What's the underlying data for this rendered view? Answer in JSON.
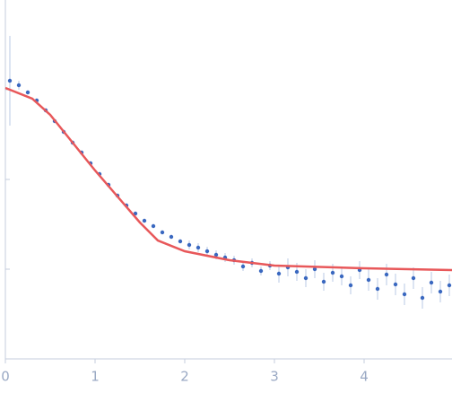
{
  "chart_data": {
    "type": "scatter",
    "xlim": [
      0,
      4.98
    ],
    "ylim": [
      0,
      4
    ],
    "xticks": [
      0,
      1,
      2,
      3,
      4
    ],
    "yticks": [
      1,
      2,
      3
    ],
    "series": [
      {
        "color": "#3a68c0",
        "x": [
          0.05,
          0.15,
          0.25,
          0.35,
          0.45,
          0.55,
          0.65,
          0.75,
          0.85,
          0.95,
          1.05,
          1.15,
          1.25,
          1.35,
          1.45,
          1.55,
          1.65,
          1.75,
          1.85,
          1.95,
          2.05,
          2.15,
          2.25,
          2.35,
          2.45,
          2.55,
          2.65,
          2.75,
          2.85,
          2.95,
          3.05,
          3.15,
          3.25,
          3.35,
          3.45,
          3.55,
          3.65,
          3.75,
          3.85,
          3.95,
          4.05,
          4.15,
          4.25,
          4.35,
          4.45,
          4.55,
          4.65,
          4.75,
          4.85,
          4.95
        ],
        "values": [
          3.1,
          3.05,
          2.97,
          2.88,
          2.77,
          2.65,
          2.53,
          2.41,
          2.3,
          2.18,
          2.06,
          1.94,
          1.82,
          1.71,
          1.62,
          1.54,
          1.48,
          1.41,
          1.36,
          1.31,
          1.27,
          1.24,
          1.2,
          1.16,
          1.13,
          1.1,
          1.03,
          1.07,
          0.98,
          1.04,
          0.95,
          1.02,
          0.97,
          0.9,
          1.0,
          0.86,
          0.96,
          0.92,
          0.82,
          0.99,
          0.88,
          0.78,
          0.94,
          0.83,
          0.72,
          0.9,
          0.68,
          0.85,
          0.75,
          0.82
        ],
        "errors": [
          0.5,
          0.05,
          0.02,
          0.02,
          0.02,
          0.02,
          0.02,
          0.02,
          0.02,
          0.02,
          0.02,
          0.02,
          0.02,
          0.02,
          0.02,
          0.02,
          0.02,
          0.02,
          0.02,
          0.02,
          0.05,
          0.05,
          0.05,
          0.05,
          0.05,
          0.05,
          0.05,
          0.05,
          0.05,
          0.05,
          0.1,
          0.1,
          0.1,
          0.1,
          0.1,
          0.1,
          0.1,
          0.1,
          0.1,
          0.1,
          0.12,
          0.12,
          0.12,
          0.12,
          0.12,
          0.12,
          0.12,
          0.12,
          0.12,
          0.12
        ]
      },
      {
        "color": "#e8585a",
        "x": [
          0,
          0.3,
          0.5,
          1.0,
          1.5,
          1.7,
          2.0,
          2.5,
          3.0,
          4.0,
          4.98
        ],
        "values": [
          3.02,
          2.9,
          2.72,
          2.1,
          1.52,
          1.32,
          1.2,
          1.1,
          1.04,
          1.01,
          0.99
        ]
      }
    ]
  }
}
